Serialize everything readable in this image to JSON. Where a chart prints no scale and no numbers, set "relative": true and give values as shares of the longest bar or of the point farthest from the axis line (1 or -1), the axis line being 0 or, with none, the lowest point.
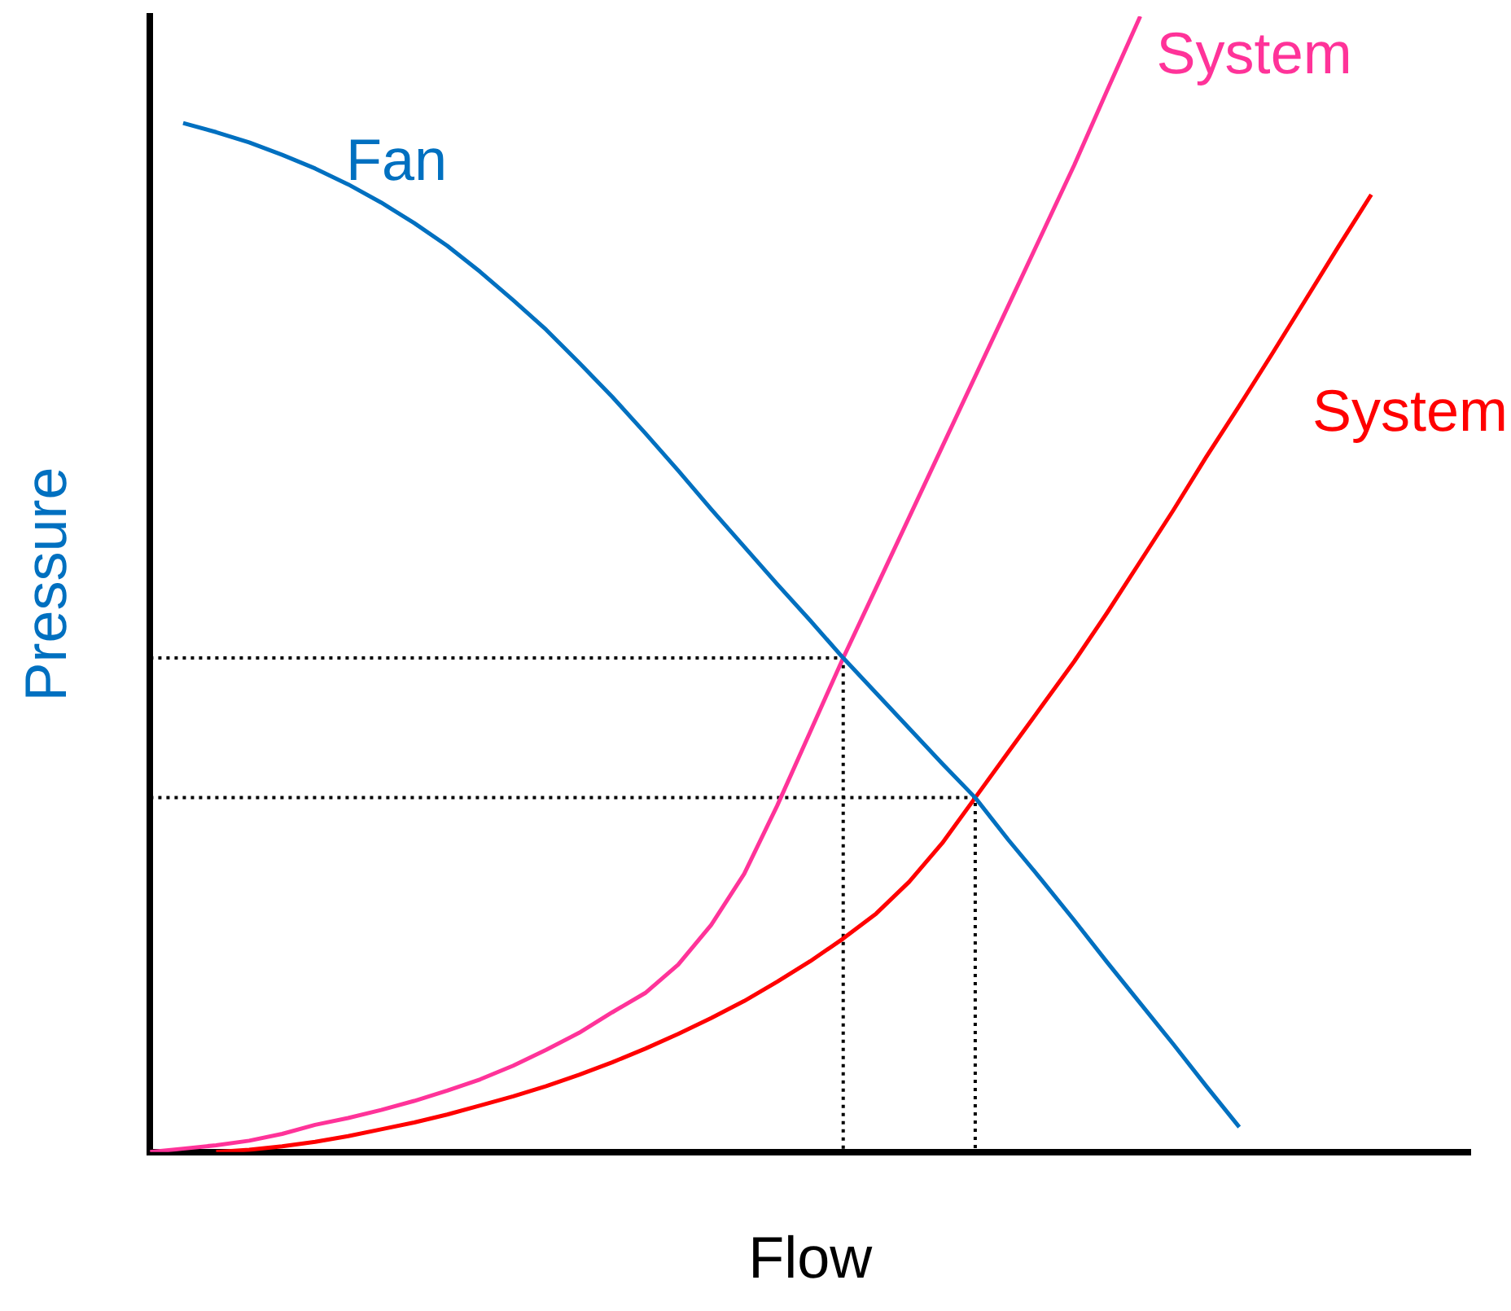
{
  "chart_data": {
    "type": "line",
    "relative": true,
    "xlabel": "Flow",
    "ylabel": "Pressure",
    "legend": false,
    "grid": false,
    "marker": "none",
    "categories": [
      null,
      null,
      null,
      null,
      null,
      null,
      null,
      null,
      null,
      null,
      null,
      null,
      null,
      null,
      null,
      null,
      null,
      null,
      null,
      null,
      null,
      null,
      null,
      null,
      null,
      null,
      null,
      null,
      null,
      null,
      null,
      null,
      null,
      null,
      null,
      null,
      null,
      null,
      null,
      null,
      null
    ],
    "series": [
      {
        "name": "Fan",
        "color": "#0070c0",
        "values": [
          null,
          0.906,
          0.898,
          0.889,
          0.878,
          0.866,
          0.852,
          0.836,
          0.818,
          0.798,
          0.775,
          0.75,
          0.724,
          0.695,
          0.665,
          0.633,
          0.6,
          0.566,
          0.533,
          0.5,
          0.468,
          0.435,
          0.404,
          0.373,
          0.342,
          0.312,
          0.275,
          0.24,
          0.204,
          0.167,
          0.131,
          0.095,
          0.058,
          0.022,
          null,
          null,
          null,
          null,
          null,
          null,
          null
        ]
      },
      {
        "name": "System",
        "color": "#ff3399",
        "values": [
          0,
          0.003,
          0.006,
          0.01,
          0.016,
          0.024,
          0.03,
          0.037,
          0.045,
          0.054,
          0.064,
          0.076,
          0.09,
          0.105,
          0.123,
          0.14,
          0.165,
          0.2,
          0.245,
          0.305,
          0.37,
          0.435,
          0.497,
          0.559,
          0.621,
          0.683,
          0.745,
          0.807,
          0.869,
          0.935,
          1,
          null,
          null,
          null,
          null,
          null,
          null,
          null,
          null,
          null,
          null
        ]
      },
      {
        "name": "System",
        "color": "#ff0000",
        "values": [
          null,
          null,
          0,
          0.002,
          0.005,
          0.009,
          0.014,
          0.02,
          0.026,
          0.033,
          0.041,
          0.049,
          0.058,
          0.068,
          0.079,
          0.091,
          0.104,
          0.118,
          0.133,
          0.15,
          0.168,
          0.188,
          0.21,
          0.238,
          0.272,
          0.312,
          0.352,
          0.392,
          0.432,
          0.475,
          0.52,
          0.565,
          0.612,
          0.657,
          0.703,
          0.75,
          0.797,
          0.843,
          null,
          null,
          null
        ]
      },
      {
        "type": "step",
        "color": "#000000",
        "line_style": "dotted",
        "values": [
          0.435,
          0.435,
          0.435,
          0.435,
          0.435,
          0.435,
          0.435,
          0.435,
          0.435,
          0.435,
          0.435,
          0.435,
          0.435,
          0.435,
          0.435,
          0.435,
          0.435,
          0.435,
          0.435,
          0.435,
          0.435,
          0.435,
          0,
          null,
          null,
          null,
          null,
          null,
          null,
          null,
          null,
          null,
          null,
          null,
          null,
          null,
          null,
          null,
          null,
          null,
          null
        ]
      },
      {
        "type": "step",
        "color": "#000000",
        "line_style": "dotted",
        "values": [
          0.312,
          0.312,
          0.312,
          0.312,
          0.312,
          0.312,
          0.312,
          0.312,
          0.312,
          0.312,
          0.312,
          0.312,
          0.312,
          0.312,
          0.312,
          0.312,
          0.312,
          0.312,
          0.312,
          0.312,
          0.312,
          0.312,
          0.312,
          0.312,
          0.312,
          0.312,
          0,
          null,
          null,
          null,
          null,
          null,
          null,
          null,
          null,
          null,
          null,
          null,
          null,
          null,
          null
        ]
      }
    ]
  }
}
